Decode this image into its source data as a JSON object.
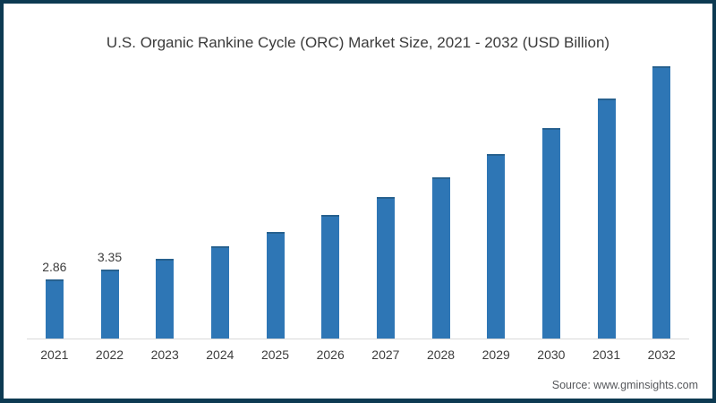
{
  "frame": {
    "border_color": "#0d3a52",
    "background_color": "#ffffff"
  },
  "source": "Source: www.gminsights.com",
  "chart_data": {
    "type": "bar",
    "title": "U.S. Organic Rankine Cycle (ORC) Market Size, 2021 - 2032 (USD Billion)",
    "xlabel": "",
    "ylabel": "",
    "categories": [
      "2021",
      "2022",
      "2023",
      "2024",
      "2025",
      "2026",
      "2027",
      "2028",
      "2029",
      "2030",
      "2031",
      "2032"
    ],
    "values": [
      2.86,
      3.35,
      3.87,
      4.48,
      5.17,
      5.98,
      6.85,
      7.84,
      8.95,
      10.22,
      11.65,
      13.22
    ],
    "data_labels": [
      "2.86",
      "3.35",
      "",
      "",
      "",
      "",
      "",
      "",
      "",
      "",
      "",
      ""
    ],
    "ylim": [
      0,
      14.3
    ],
    "grid": false,
    "legend": "none",
    "axis_line_color": "#d9d9d9",
    "bar_color": "#2e76b5",
    "bar_top_edge_color": "#27618f",
    "title_color": "#3b3b3b",
    "tick_label_color": "#3d3d3d",
    "source_color": "#56585c"
  }
}
